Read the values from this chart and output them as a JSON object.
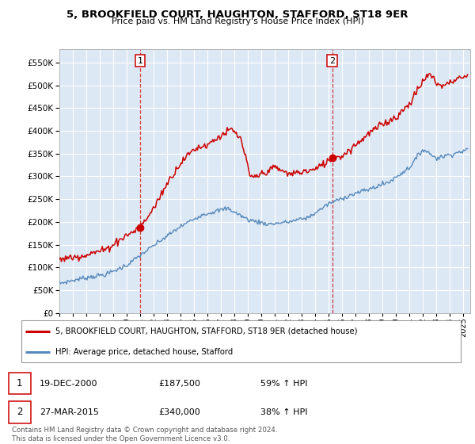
{
  "title": "5, BROOKFIELD COURT, HAUGHTON, STAFFORD, ST18 9ER",
  "subtitle": "Price paid vs. HM Land Registry's House Price Index (HPI)",
  "ylim": [
    0,
    580000
  ],
  "yticks": [
    0,
    50000,
    100000,
    150000,
    200000,
    250000,
    300000,
    350000,
    400000,
    450000,
    500000,
    550000
  ],
  "sale1_date": 2001.0,
  "sale1_price": 187500,
  "sale2_date": 2015.25,
  "sale2_price": 340000,
  "red_color": "#cc0000",
  "blue_color": "#5588bb",
  "chart_bg": "#dde8f5",
  "grid_color": "#bbbbcc",
  "legend_label_red": "5, BROOKFIELD COURT, HAUGHTON, STAFFORD, ST18 9ER (detached house)",
  "legend_label_blue": "HPI: Average price, detached house, Stafford",
  "annotation1": [
    "1",
    "19-DEC-2000",
    "£187,500",
    "59% ↑ HPI"
  ],
  "annotation2": [
    "2",
    "27-MAR-2015",
    "£340,000",
    "38% ↑ HPI"
  ],
  "footnote": "Contains HM Land Registry data © Crown copyright and database right 2024.\nThis data is licensed under the Open Government Licence v3.0.",
  "xmin": 1995.0,
  "xmax": 2025.5
}
